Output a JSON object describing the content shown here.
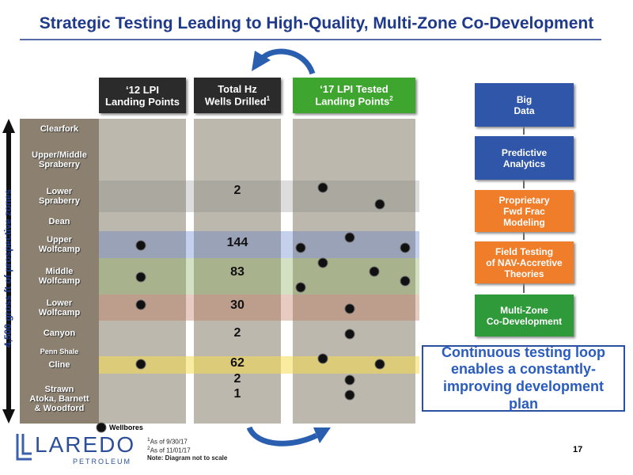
{
  "title": "Strategic Testing Leading to High-Quality, Multi-Zone Co-Development",
  "side_label": "4,500 gross ft of prospective zones",
  "columns": [
    {
      "lines": [
        "‘12 LPI",
        "Landing Points"
      ]
    },
    {
      "lines": [
        "Total Hz",
        "Wells Drilled"
      ],
      "sup": "1"
    },
    {
      "lines": [
        "‘17 LPI Tested",
        "Landing Points"
      ],
      "sup": "2"
    }
  ],
  "zones": [
    [
      "Clearfork"
    ],
    [
      "Upper/Middle",
      "Spraberry"
    ],
    [
      "Lower",
      "Spraberry"
    ],
    [
      "Dean"
    ],
    [
      "Upper",
      "Wolfcamp"
    ],
    [
      "Middle",
      "Wolfcamp"
    ],
    [
      "Lower",
      "Wolfcamp"
    ],
    [
      "Canyon"
    ],
    [
      "Penn Shale"
    ],
    [
      "Cline"
    ],
    [
      "Strawn",
      "Atoka, Barnett",
      "& Woodford"
    ]
  ],
  "wells_drilled": [
    2,
    144,
    83,
    30,
    2,
    62,
    2,
    1
  ],
  "flow": [
    [
      "Big",
      "Data"
    ],
    [
      "Predictive",
      "Analytics"
    ],
    [
      "Proprietary",
      "Fwd Frac",
      "Modeling"
    ],
    [
      "Field Testing",
      "of NAV-Accretive",
      "Theories"
    ],
    [
      "Multi-Zone",
      "Co-Development"
    ]
  ],
  "callout": "Continuous testing loop enables a constantly-improving development plan",
  "legend": "Wellbores",
  "footnotes": [
    {
      "sup": "1",
      "text": "As of 9/30/17"
    },
    {
      "sup": "2",
      "text": "As of 11/01/17"
    },
    {
      "text": "Note: Diagram not to scale"
    }
  ],
  "logo": {
    "name": "LAREDO",
    "sub": "PETROLEUM"
  },
  "page_number": "17"
}
